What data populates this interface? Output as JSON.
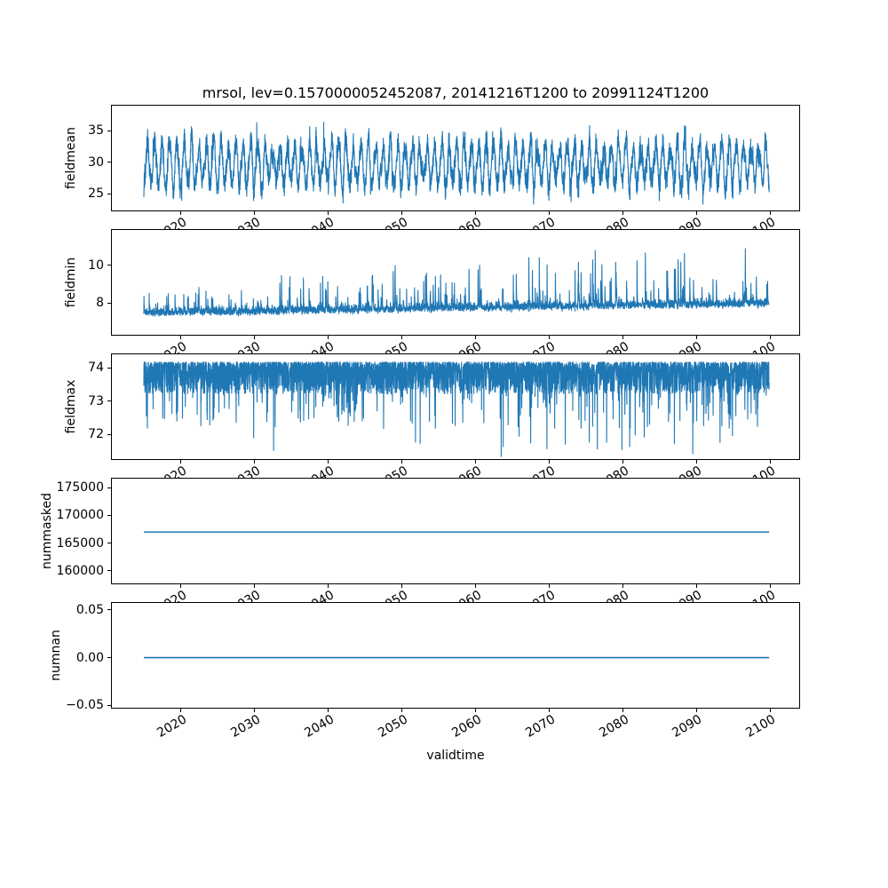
{
  "figure": {
    "title": "mrsol, lev=0.1570000052452087, 20141216T1200 to 20991124T1200",
    "xlabel": "validtime",
    "line_color": "#1f77b4",
    "axis_color": "#000000",
    "background": "#ffffff"
  },
  "x_axis": {
    "label": "validtime",
    "tick_values": [
      2020,
      2030,
      2040,
      2050,
      2060,
      2070,
      2080,
      2090,
      2100
    ],
    "tick_labels": [
      "2020",
      "2030",
      "2040",
      "2050",
      "2060",
      "2070",
      "2080",
      "2090",
      "2100"
    ],
    "tick_label_rotation_deg": 30,
    "xlim": [
      2010.5,
      2104.1
    ],
    "data_start_year": 2014.96,
    "data_end_year": 2099.9,
    "data_start_label": "20141216T1200",
    "data_end_label": "20991124T1200"
  },
  "chart_data": [
    {
      "type": "line",
      "name": "fieldmean",
      "ylabel": "fieldmean",
      "ylim": [
        22.2,
        39.1
      ],
      "tick_values": [
        25,
        30,
        35
      ],
      "tick_labels": [
        "25",
        "30",
        "35"
      ],
      "series": {
        "pattern": "seasonal_noise",
        "description": "dense noisy annual oscillation, ~weekly sampling 2014.96-2099.9",
        "mean": 29.6,
        "seasonal_amplitude_range": [
          2.2,
          4.1
        ],
        "noise_sd": 0.9,
        "observed_min": 23.5,
        "observed_max": 37.8,
        "points": 4430
      }
    },
    {
      "type": "line",
      "name": "fieldmin",
      "ylabel": "fieldmin",
      "ylim": [
        6.24,
        11.95
      ],
      "tick_values": [
        8,
        10
      ],
      "tick_labels": [
        "8",
        "10"
      ],
      "series": {
        "pattern": "baseline_spikes",
        "description": "baseline ~7.4 rising to ~7.9 with upward spikes growing over time",
        "baseline_start": 7.35,
        "baseline_end": 7.85,
        "noise_sd": 0.16,
        "spike_max_early": 9.9,
        "spike_max_late": 11.5,
        "observed_min": 6.9,
        "observed_max": 11.5,
        "points": 4430
      }
    },
    {
      "type": "line",
      "name": "fieldmax",
      "ylabel": "fieldmax",
      "ylim": [
        71.23,
        74.43
      ],
      "tick_values": [
        72,
        73,
        74
      ],
      "tick_labels": [
        "72",
        "73",
        "74"
      ],
      "series": {
        "pattern": "ceiling_dropouts",
        "description": "dense band hugging ceiling ~74.15 with frequent drops to ~72-73, rare drops to ~71.4",
        "ceiling": 74.17,
        "band_low": 73.2,
        "typical_dropout": 72.3,
        "dropout_min": 71.4,
        "points": 4430
      }
    },
    {
      "type": "line",
      "name": "nummasked",
      "ylabel": "nummasked",
      "ylim": [
        157600,
        176760
      ],
      "tick_values": [
        160000,
        165000,
        170000,
        175000
      ],
      "tick_labels": [
        "160000",
        "165000",
        "170000",
        "175000"
      ],
      "series": {
        "pattern": "constant",
        "description": "perfectly flat line",
        "value": 167000
      }
    },
    {
      "type": "line",
      "name": "numnan",
      "ylabel": "numnan",
      "ylim": [
        -0.0537,
        0.0584
      ],
      "tick_values": [
        -0.05,
        0,
        0.05
      ],
      "tick_labels": [
        "−0.05",
        "0.00",
        "0.05"
      ],
      "series": {
        "pattern": "constant",
        "description": "perfectly flat line at zero",
        "value": 0
      }
    }
  ]
}
